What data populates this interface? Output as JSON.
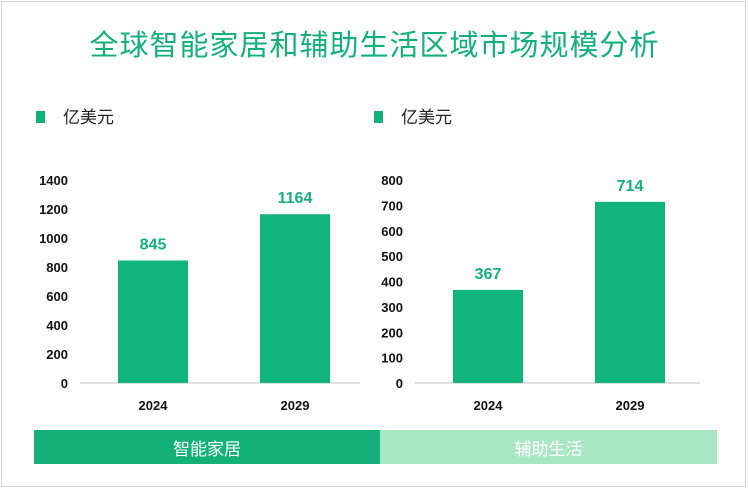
{
  "title": "全球智能家居和辅助生活区域市场规模分析",
  "chart_data": [
    {
      "type": "bar",
      "unit_legend": "亿美元",
      "categories": [
        "2024",
        "2029"
      ],
      "values": [
        845,
        1164
      ],
      "ylim": [
        0,
        1400
      ],
      "yticks": [
        0,
        200,
        400,
        600,
        800,
        1000,
        1200,
        1400
      ],
      "category_label": "智能家居",
      "colors": {
        "bar": "#10b47c",
        "label": "#13b07a",
        "band": "#13b07a"
      }
    },
    {
      "type": "bar",
      "unit_legend": "亿美元",
      "categories": [
        "2024",
        "2029"
      ],
      "values": [
        367,
        714
      ],
      "ylim": [
        0,
        800
      ],
      "yticks": [
        0,
        100,
        200,
        300,
        400,
        500,
        600,
        700,
        800
      ],
      "category_label": "辅助生活",
      "colors": {
        "bar": "#10b47c",
        "label": "#13b07a",
        "band": "#a9e6c4"
      }
    }
  ]
}
